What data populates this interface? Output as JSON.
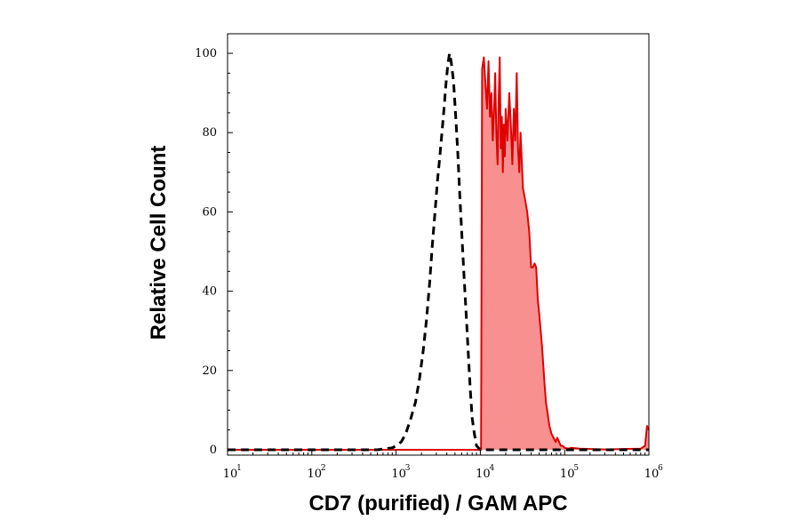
{
  "chart_data": {
    "type": "area",
    "xlabel": "CD7 (purified) / GAM APC",
    "ylabel": "Relative Cell Count",
    "x_scale": "log",
    "xlim": [
      10,
      1000000
    ],
    "ylim": [
      0,
      100
    ],
    "y_ticks": [
      "0",
      "20",
      "40",
      "60",
      "80",
      "100"
    ],
    "x_ticks": [
      {
        "base": "10",
        "exp": "1"
      },
      {
        "base": "10",
        "exp": "2"
      },
      {
        "base": "10",
        "exp": "3"
      },
      {
        "base": "10",
        "exp": "4"
      },
      {
        "base": "10",
        "exp": "5"
      },
      {
        "base": "10",
        "exp": "6"
      }
    ],
    "grid": false,
    "series": [
      {
        "style": "dashed",
        "color": "#000000",
        "fill": "none",
        "x": [
          10,
          600,
          900,
          1000,
          1150,
          1300,
          1500,
          1700,
          1900,
          2100,
          2300,
          2500,
          2700,
          2900,
          3100,
          3300,
          3500,
          3700,
          3900,
          4100,
          4300,
          4500,
          4800,
          5100,
          5400,
          5700,
          6000,
          6400,
          6800,
          7200,
          7600,
          8000,
          8500,
          9000,
          10000,
          1000000
        ],
        "values": [
          0,
          0,
          0.5,
          1,
          2,
          4,
          8,
          12,
          18,
          25,
          33,
          42,
          52,
          60,
          68,
          74,
          80,
          86,
          92,
          97,
          100,
          98,
          93,
          84,
          75,
          64,
          55,
          44,
          34,
          24,
          15,
          8,
          4,
          1,
          0,
          0
        ]
      },
      {
        "style": "solid",
        "color": "#e00000",
        "fill": "#f99090",
        "x": [
          10,
          9000,
          10200,
          10500,
          11000,
          11500,
          12000,
          12500,
          13000,
          13500,
          14000,
          14500,
          15000,
          15500,
          16000,
          16500,
          17000,
          17500,
          18000,
          18500,
          19000,
          19500,
          20000,
          21000,
          22000,
          23000,
          24000,
          25000,
          26000,
          27000,
          28000,
          29000,
          30000,
          32000,
          34000,
          36000,
          38000,
          40000,
          42000,
          44000,
          46000,
          48000,
          50000,
          52000,
          54000,
          56000,
          58000,
          60000,
          63000,
          66000,
          70000,
          74000,
          78000,
          82000,
          86000,
          90000,
          95000,
          100000,
          110000,
          120000,
          150000,
          200000,
          300000,
          500000,
          800000,
          900000,
          950000,
          1000000
        ],
        "values": [
          0,
          0,
          0,
          96,
          99,
          92,
          86,
          98,
          84,
          90,
          78,
          85,
          95,
          80,
          72,
          88,
          99,
          76,
          84,
          70,
          82,
          74,
          86,
          78,
          90,
          82,
          72,
          86,
          78,
          95,
          76,
          70,
          80,
          66,
          63,
          60,
          55,
          46,
          46,
          47,
          46,
          38,
          34,
          30,
          26,
          21,
          16,
          12,
          9,
          6,
          4,
          3,
          2,
          3,
          2,
          1,
          1,
          0.5,
          0.3,
          0.5,
          0.3,
          0.2,
          0.1,
          0.2,
          0.3,
          1,
          6,
          5
        ]
      }
    ]
  }
}
